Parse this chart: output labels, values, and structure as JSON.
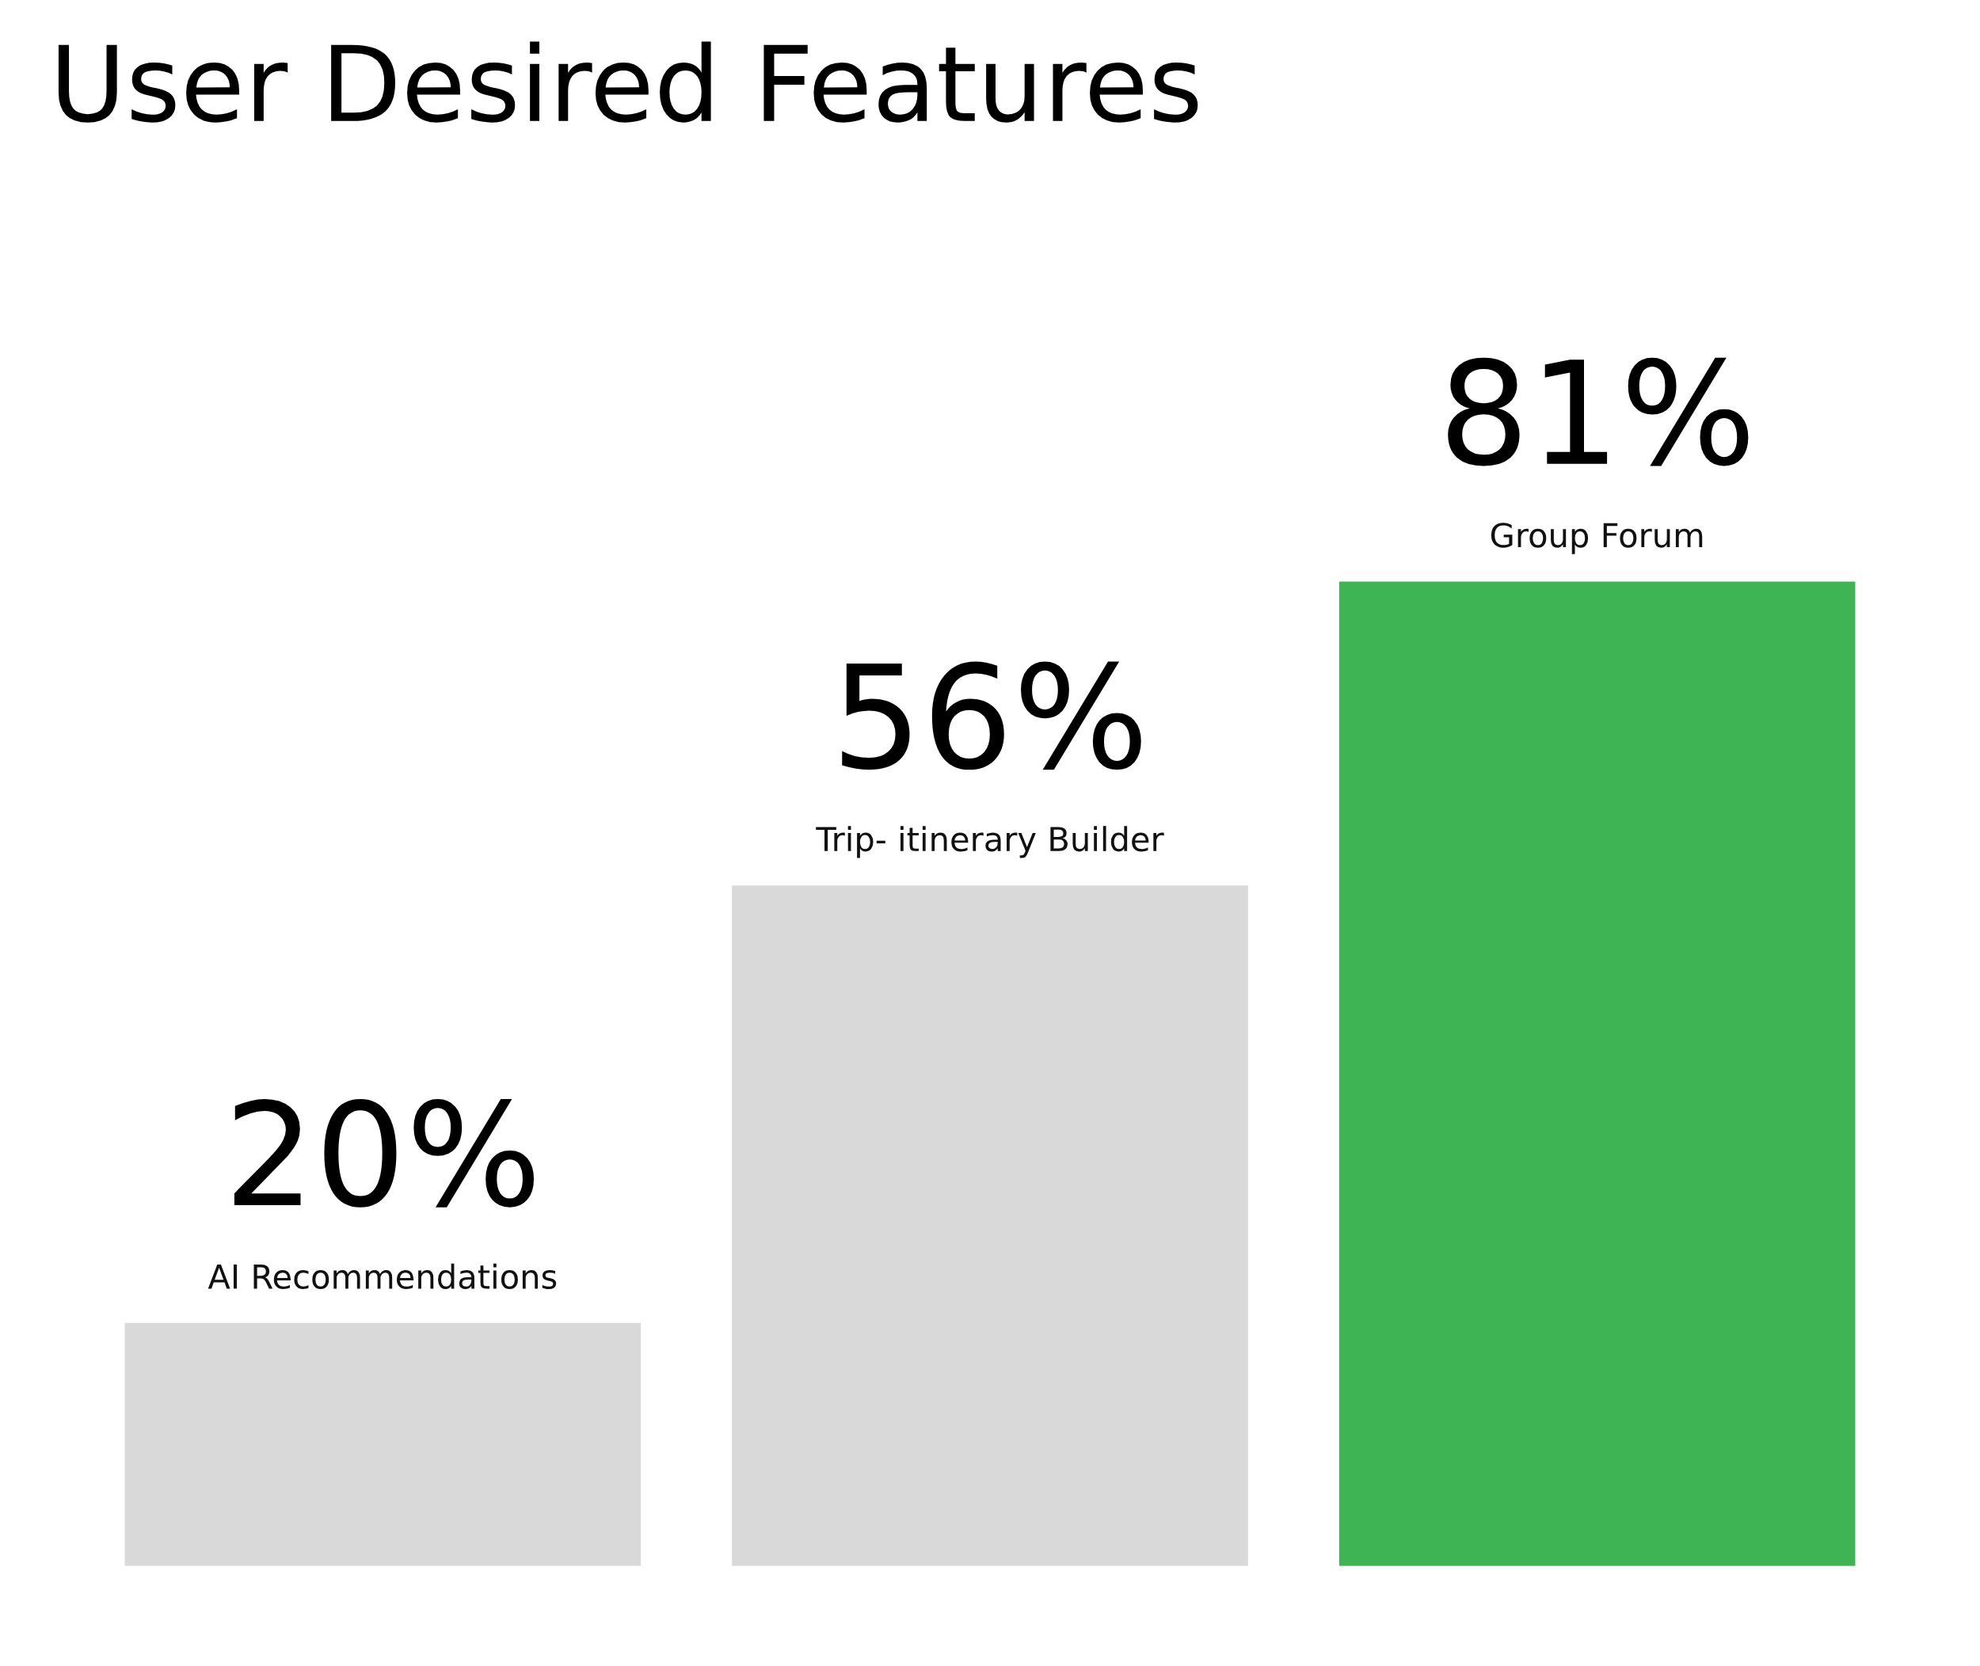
{
  "chart_data": {
    "type": "bar",
    "title": "User Desired Features",
    "categories": [
      "AI Recommendations",
      "Trip- itinerary Builder",
      "Group Forum"
    ],
    "values": [
      20,
      56,
      81
    ],
    "colors": [
      "#d9d9d9",
      "#d9d9d9",
      "#3fb455"
    ],
    "value_labels": [
      "20%",
      "56%",
      "81%"
    ],
    "tick_labels": false
  }
}
